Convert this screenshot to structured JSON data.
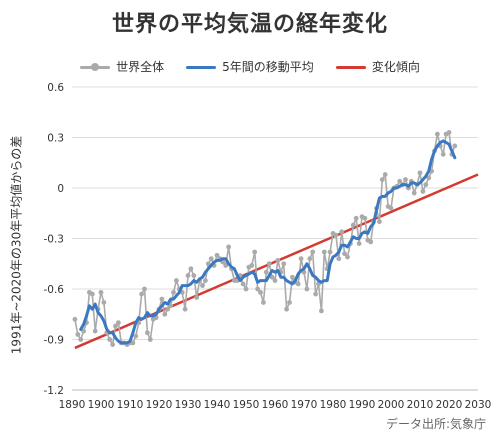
{
  "chart_data": {
    "type": "line",
    "title": "世界の平均気温の経年変化",
    "ylabel": "1991年~2020年の30年平均値からの差",
    "xlabel": "",
    "xlim": [
      1890,
      2030
    ],
    "ylim": [
      -1.2,
      0.6
    ],
    "x_ticks": [
      1890,
      1900,
      1910,
      1920,
      1930,
      1940,
      1950,
      1960,
      1970,
      1980,
      1990,
      2000,
      2010,
      2020,
      2030
    ],
    "y_ticks": [
      0.6,
      0.3,
      0,
      -0.3,
      -0.6,
      -0.9,
      -1.2
    ],
    "y_tick_labels": [
      "0.6",
      "0.3",
      "0",
      "-0.3",
      "-0.6",
      "-0.9",
      "-1.2"
    ],
    "grid": "horizontal",
    "legend_position": "top",
    "source": "データ出所:気象庁",
    "series": [
      {
        "name": "世界全体",
        "color": "#aaaaaa",
        "marker": "circle",
        "x": [
          1891,
          1892,
          1893,
          1894,
          1895,
          1896,
          1897,
          1898,
          1899,
          1900,
          1901,
          1902,
          1903,
          1904,
          1905,
          1906,
          1907,
          1908,
          1909,
          1910,
          1911,
          1912,
          1913,
          1914,
          1915,
          1916,
          1917,
          1918,
          1919,
          1920,
          1921,
          1922,
          1923,
          1924,
          1925,
          1926,
          1927,
          1928,
          1929,
          1930,
          1931,
          1932,
          1933,
          1934,
          1935,
          1936,
          1937,
          1938,
          1939,
          1940,
          1941,
          1942,
          1943,
          1944,
          1945,
          1946,
          1947,
          1948,
          1949,
          1950,
          1951,
          1952,
          1953,
          1954,
          1955,
          1956,
          1957,
          1958,
          1959,
          1960,
          1961,
          1962,
          1963,
          1964,
          1965,
          1966,
          1967,
          1968,
          1969,
          1970,
          1971,
          1972,
          1973,
          1974,
          1975,
          1976,
          1977,
          1978,
          1979,
          1980,
          1981,
          1982,
          1983,
          1984,
          1985,
          1986,
          1987,
          1988,
          1989,
          1990,
          1991,
          1992,
          1993,
          1994,
          1995,
          1996,
          1997,
          1998,
          1999,
          2000,
          2001,
          2002,
          2003,
          2004,
          2005,
          2006,
          2007,
          2008,
          2009,
          2010,
          2011,
          2012,
          2013,
          2014,
          2015,
          2016,
          2017,
          2018,
          2019,
          2020,
          2021,
          2022
        ],
        "y": [
          -0.78,
          -0.87,
          -0.9,
          -0.85,
          -0.8,
          -0.62,
          -0.63,
          -0.85,
          -0.72,
          -0.62,
          -0.68,
          -0.86,
          -0.9,
          -0.93,
          -0.82,
          -0.8,
          -0.92,
          -0.92,
          -0.93,
          -0.92,
          -0.92,
          -0.88,
          -0.8,
          -0.63,
          -0.6,
          -0.86,
          -0.9,
          -0.78,
          -0.77,
          -0.72,
          -0.66,
          -0.75,
          -0.72,
          -0.7,
          -0.62,
          -0.55,
          -0.6,
          -0.62,
          -0.72,
          -0.52,
          -0.48,
          -0.52,
          -0.65,
          -0.55,
          -0.58,
          -0.55,
          -0.45,
          -0.42,
          -0.46,
          -0.4,
          -0.42,
          -0.44,
          -0.46,
          -0.35,
          -0.48,
          -0.55,
          -0.55,
          -0.52,
          -0.57,
          -0.6,
          -0.47,
          -0.46,
          -0.38,
          -0.6,
          -0.62,
          -0.68,
          -0.5,
          -0.45,
          -0.53,
          -0.55,
          -0.43,
          -0.5,
          -0.45,
          -0.72,
          -0.68,
          -0.53,
          -0.56,
          -0.57,
          -0.42,
          -0.5,
          -0.6,
          -0.42,
          -0.38,
          -0.63,
          -0.57,
          -0.73,
          -0.38,
          -0.48,
          -0.38,
          -0.27,
          -0.28,
          -0.42,
          -0.26,
          -0.39,
          -0.41,
          -0.33,
          -0.22,
          -0.18,
          -0.33,
          -0.17,
          -0.18,
          -0.31,
          -0.32,
          -0.2,
          -0.12,
          -0.2,
          0.05,
          0.08,
          -0.11,
          -0.12,
          0.0,
          0.01,
          0.04,
          0.02,
          0.05,
          0.0,
          0.04,
          -0.03,
          0.02,
          0.09,
          -0.02,
          0.02,
          0.06,
          0.1,
          0.22,
          0.32,
          0.25,
          0.2,
          0.32,
          0.33,
          0.2,
          0.25
        ]
      },
      {
        "name": "5年間の移動平均",
        "color": "#3b78c2",
        "x": [
          1893,
          1894,
          1895,
          1896,
          1897,
          1898,
          1899,
          1900,
          1901,
          1902,
          1903,
          1904,
          1905,
          1906,
          1907,
          1908,
          1909,
          1910,
          1911,
          1912,
          1913,
          1914,
          1915,
          1916,
          1917,
          1918,
          1919,
          1920,
          1921,
          1922,
          1923,
          1924,
          1925,
          1926,
          1927,
          1928,
          1929,
          1930,
          1931,
          1932,
          1933,
          1934,
          1935,
          1936,
          1937,
          1938,
          1939,
          1940,
          1941,
          1942,
          1943,
          1944,
          1945,
          1946,
          1947,
          1948,
          1949,
          1950,
          1951,
          1952,
          1953,
          1954,
          1955,
          1956,
          1957,
          1958,
          1959,
          1960,
          1961,
          1962,
          1963,
          1964,
          1965,
          1966,
          1967,
          1968,
          1969,
          1970,
          1971,
          1972,
          1973,
          1974,
          1975,
          1976,
          1977,
          1978,
          1979,
          1980,
          1981,
          1982,
          1983,
          1984,
          1985,
          1986,
          1987,
          1988,
          1989,
          1990,
          1991,
          1992,
          1993,
          1994,
          1995,
          1996,
          1997,
          1998,
          1999,
          2000,
          2001,
          2002,
          2003,
          2004,
          2005,
          2006,
          2007,
          2008,
          2009,
          2010,
          2011,
          2012,
          2013,
          2014,
          2015,
          2016,
          2017,
          2018,
          2019,
          2020,
          2021,
          2022
        ],
        "y": [
          -0.84,
          -0.81,
          -0.76,
          -0.7,
          -0.72,
          -0.69,
          -0.74,
          -0.76,
          -0.79,
          -0.84,
          -0.86,
          -0.86,
          -0.89,
          -0.91,
          -0.92,
          -0.92,
          -0.92,
          -0.91,
          -0.86,
          -0.8,
          -0.77,
          -0.78,
          -0.77,
          -0.74,
          -0.76,
          -0.76,
          -0.75,
          -0.72,
          -0.7,
          -0.68,
          -0.69,
          -0.66,
          -0.66,
          -0.64,
          -0.62,
          -0.58,
          -0.58,
          -0.58,
          -0.57,
          -0.55,
          -0.56,
          -0.54,
          -0.53,
          -0.5,
          -0.48,
          -0.46,
          -0.44,
          -0.43,
          -0.43,
          -0.42,
          -0.42,
          -0.45,
          -0.47,
          -0.48,
          -0.52,
          -0.55,
          -0.53,
          -0.52,
          -0.51,
          -0.5,
          -0.51,
          -0.56,
          -0.55,
          -0.55,
          -0.55,
          -0.52,
          -0.49,
          -0.5,
          -0.49,
          -0.53,
          -0.53,
          -0.55,
          -0.56,
          -0.57,
          -0.55,
          -0.51,
          -0.49,
          -0.48,
          -0.45,
          -0.48,
          -0.52,
          -0.53,
          -0.55,
          -0.56,
          -0.55,
          -0.55,
          -0.45,
          -0.41,
          -0.4,
          -0.38,
          -0.34,
          -0.34,
          -0.35,
          -0.32,
          -0.29,
          -0.3,
          -0.3,
          -0.27,
          -0.26,
          -0.27,
          -0.23,
          -0.21,
          -0.13,
          -0.06,
          -0.05,
          -0.05,
          -0.03,
          -0.02,
          0.0,
          0.0,
          0.01,
          0.02,
          0.02,
          0.01,
          0.03,
          0.03,
          0.02,
          0.03,
          0.05,
          0.07,
          0.1,
          0.17,
          0.22,
          0.25,
          0.27,
          0.28,
          0.27,
          0.26,
          0.22,
          0.18
        ]
      },
      {
        "name": "変化傾向",
        "color": "#d33a32",
        "x": [
          1891,
          2030
        ],
        "y": [
          -0.95,
          0.08
        ]
      }
    ]
  }
}
